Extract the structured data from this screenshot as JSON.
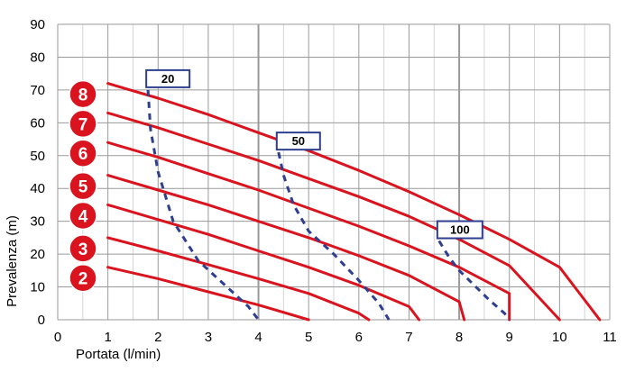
{
  "chart_data": {
    "type": "line",
    "xlabel": "Portata (l/min)",
    "ylabel": "Prevalenza (m)",
    "xlim": [
      0,
      11
    ],
    "ylim": [
      0,
      90
    ],
    "xticks": [
      0,
      1,
      2,
      3,
      4,
      5,
      6,
      7,
      8,
      9,
      10,
      11
    ],
    "yticks": [
      0,
      10,
      20,
      30,
      40,
      50,
      60,
      70,
      80,
      90
    ],
    "grid": true,
    "colors": {
      "curve": "#d9141e",
      "badge": "#d9141e",
      "iso": "#2e3f8f",
      "grid_major": "#9a9a9a",
      "grid_minor": "#d4d4d4"
    },
    "series": [
      {
        "name": "2",
        "x": [
          1,
          2,
          3,
          4,
          5
        ],
        "y": [
          16,
          12.5,
          8.5,
          4.5,
          0
        ]
      },
      {
        "name": "3",
        "x": [
          1,
          2,
          3,
          4,
          5,
          6,
          6.2
        ],
        "y": [
          25,
          21,
          16.8,
          12.5,
          8,
          2,
          0
        ]
      },
      {
        "name": "4",
        "x": [
          1,
          2,
          3,
          4,
          5,
          6,
          7,
          7.2
        ],
        "y": [
          35,
          30.5,
          26,
          21,
          16,
          10.5,
          4,
          0
        ]
      },
      {
        "name": "5",
        "x": [
          1,
          2,
          3,
          4,
          5,
          6,
          7,
          8,
          8.1
        ],
        "y": [
          44,
          39.5,
          35,
          30,
          25,
          19.5,
          13.5,
          5.5,
          0
        ]
      },
      {
        "name": "6",
        "x": [
          1,
          2,
          3,
          4,
          5,
          6,
          7,
          8,
          9,
          9
        ],
        "y": [
          54,
          49.5,
          44.5,
          39.5,
          34,
          28.5,
          22.5,
          16,
          8,
          0
        ]
      },
      {
        "name": "7",
        "x": [
          1,
          2,
          3,
          4,
          5,
          6,
          7,
          8,
          9,
          10
        ],
        "y": [
          63,
          58.5,
          53.5,
          48.5,
          43,
          37.5,
          31.5,
          24.5,
          16.5,
          0
        ]
      },
      {
        "name": "8",
        "x": [
          1,
          2,
          3,
          4,
          5,
          6,
          7,
          8,
          9,
          10,
          10.8
        ],
        "y": [
          72,
          67.5,
          62.5,
          57,
          51.5,
          45.5,
          39,
          32,
          24.5,
          16,
          0
        ]
      }
    ],
    "iso_curves": [
      {
        "label": "20",
        "x": [
          1.8,
          1.85,
          2.0,
          2.3,
          2.8,
          3.3,
          3.8,
          4.0
        ],
        "y": [
          70,
          58,
          45,
          30,
          18,
          11,
          4,
          0
        ]
      },
      {
        "label": "50",
        "x": [
          4.4,
          4.5,
          4.7,
          5.0,
          5.5,
          6.0,
          6.4,
          6.6
        ],
        "y": [
          51,
          44,
          35,
          27,
          20,
          12,
          5,
          0
        ]
      },
      {
        "label": "100",
        "x": [
          7.6,
          7.8,
          8.0,
          8.3,
          8.6,
          8.9,
          9.0
        ],
        "y": [
          24,
          19,
          15,
          10.5,
          6,
          2,
          0
        ]
      }
    ]
  }
}
